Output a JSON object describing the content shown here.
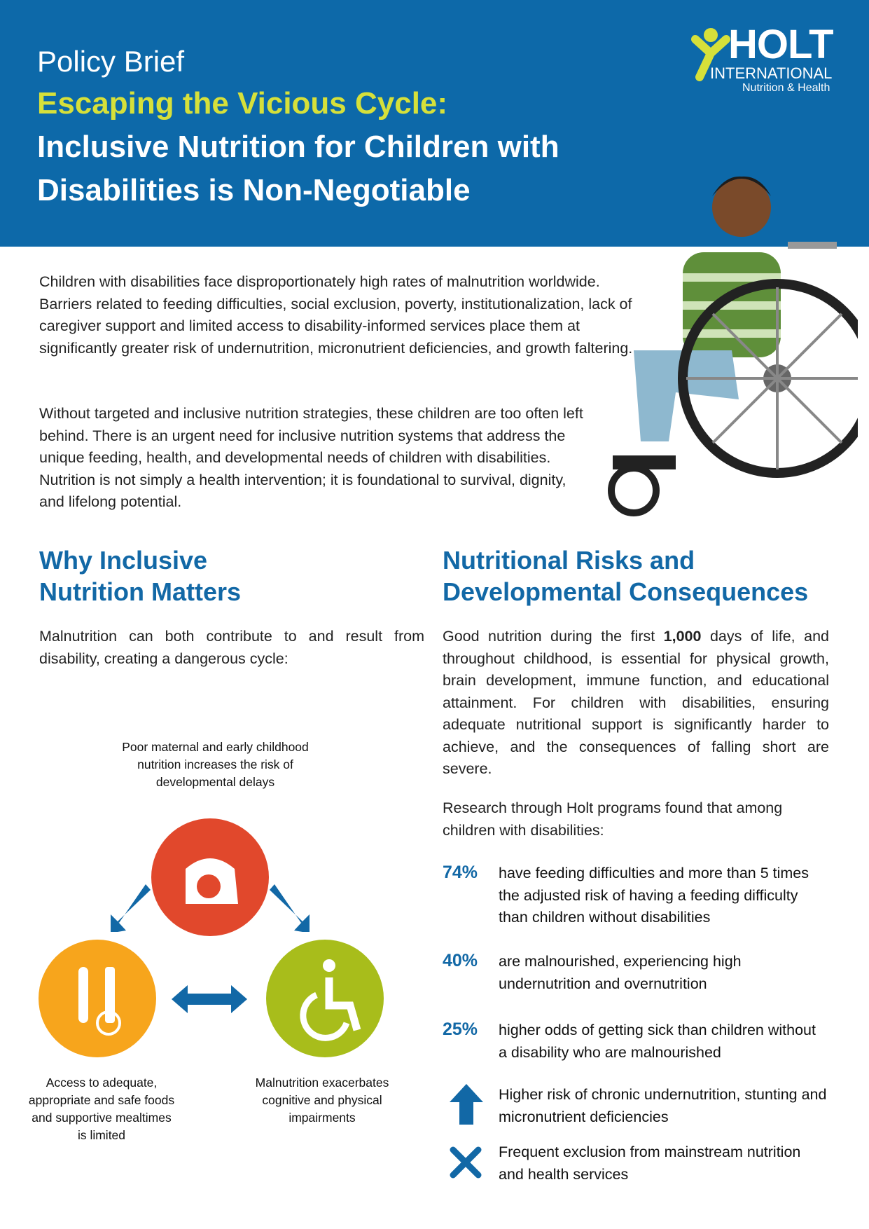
{
  "header": {
    "label": "Policy Brief",
    "title_highlight": "Escaping the Vicious Cycle:",
    "title": [
      "Inclusive Nutrition for Children with",
      "Disabilities is Non-Negotiable"
    ]
  },
  "logo": {
    "name": "HOLT",
    "subtitle": "INTERNATIONAL",
    "tagline": "Nutrition & Health"
  },
  "intro": [
    "Children with disabilities face disproportionately high rates of malnutrition worldwide. Barriers related to feeding difficulties, social exclusion, poverty, institutionalization, lack of caregiver support and limited access to disability-informed services place them at significantly greater risk of undernutrition, micronutrient deficiencies, and growth faltering.",
    "Without targeted and inclusive nutrition strategies, these children are too often left behind. There is an urgent need for inclusive nutrition systems that address the unique feeding, health, and developmental needs of children with disabilities. Nutrition is not simply a health intervention; it is foundational to survival, dignity, and lifelong potential."
  ],
  "why": {
    "heading": [
      "Why Inclusive",
      "Nutrition Matters"
    ],
    "text": "Malnutrition can both contribute to and result from disability, creating a dangerous cycle:",
    "cycle": [
      "Poor maternal and early childhood nutrition increases the risk of developmental delays",
      "Access to adequate, appropriate and safe foods and supportive mealtimes is limited",
      "Malnutrition exacerbates cognitive and physical impairments"
    ]
  },
  "risks": {
    "heading": [
      "Nutritional Risks and",
      "Developmental Consequences"
    ],
    "text_before": "Good nutrition during the first ",
    "text_bold": "1,000",
    "text_after": " days of life, and throughout childhood, is essential for physical growth, brain development, immune function, and educational attainment.  For children with disabilities, ensuring adequate nutritional support is significantly harder to achieve, and the consequences of falling short are severe.",
    "research": "Research through Holt programs found that among children with disabilities:",
    "stats": [
      {
        "figure": "74%",
        "text": "have feeding difficulties and more than 5 times the adjusted risk of having a feeding difficulty than children without disabilities"
      },
      {
        "figure": "40%",
        "text": "are malnourished, experiencing high undernutrition and overnutrition"
      },
      {
        "figure": "25%",
        "text": "higher odds of getting sick than children without a disability who are malnourished"
      }
    ],
    "points": [
      "Higher risk of chronic undernutrition, stunting and micronutrient deficiencies",
      "Frequent exclusion from mainstream nutrition and health services"
    ]
  }
}
